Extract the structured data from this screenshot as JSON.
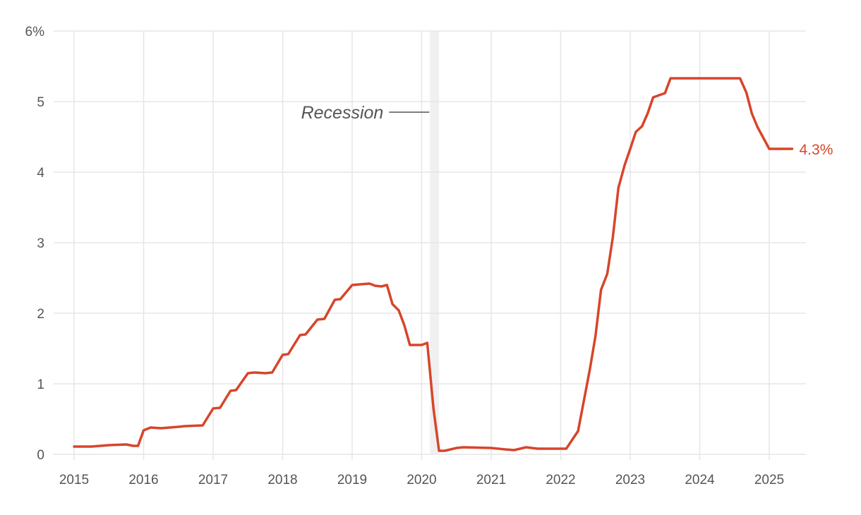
{
  "chart_data": {
    "type": "line",
    "title": "",
    "xlabel": "",
    "ylabel": "",
    "xlim": [
      2015,
      2025.6
    ],
    "ylim": [
      0,
      6
    ],
    "y_ticks": [
      0,
      1,
      2,
      3,
      4,
      5,
      6
    ],
    "y_tick_labels": [
      "0",
      "1",
      "2",
      "3",
      "4",
      "5",
      "6%"
    ],
    "x_ticks": [
      2015,
      2016,
      2017,
      2018,
      2019,
      2020,
      2021,
      2022,
      2023,
      2024,
      2025
    ],
    "x_tick_labels": [
      "2015",
      "2016",
      "2017",
      "2018",
      "2019",
      "2020",
      "2021",
      "2022",
      "2023",
      "2024",
      "2025"
    ],
    "grid": true,
    "series": [
      {
        "color": "#d7452a",
        "end_label": "4.3%",
        "points": [
          [
            2015.0,
            0.11
          ],
          [
            2015.25,
            0.11
          ],
          [
            2015.5,
            0.13
          ],
          [
            2015.75,
            0.14
          ],
          [
            2015.85,
            0.12
          ],
          [
            2015.92,
            0.12
          ],
          [
            2016.0,
            0.34
          ],
          [
            2016.1,
            0.38
          ],
          [
            2016.25,
            0.37
          ],
          [
            2016.5,
            0.39
          ],
          [
            2016.6,
            0.4
          ],
          [
            2016.85,
            0.41
          ],
          [
            2017.0,
            0.65
          ],
          [
            2017.1,
            0.66
          ],
          [
            2017.25,
            0.9
          ],
          [
            2017.33,
            0.91
          ],
          [
            2017.5,
            1.15
          ],
          [
            2017.6,
            1.16
          ],
          [
            2017.75,
            1.15
          ],
          [
            2017.85,
            1.16
          ],
          [
            2018.0,
            1.41
          ],
          [
            2018.08,
            1.42
          ],
          [
            2018.25,
            1.69
          ],
          [
            2018.33,
            1.7
          ],
          [
            2018.5,
            1.91
          ],
          [
            2018.6,
            1.92
          ],
          [
            2018.75,
            2.19
          ],
          [
            2018.83,
            2.2
          ],
          [
            2019.0,
            2.4
          ],
          [
            2019.25,
            2.42
          ],
          [
            2019.33,
            2.39
          ],
          [
            2019.42,
            2.38
          ],
          [
            2019.5,
            2.4
          ],
          [
            2019.58,
            2.13
          ],
          [
            2019.67,
            2.04
          ],
          [
            2019.75,
            1.83
          ],
          [
            2019.83,
            1.55
          ],
          [
            2020.0,
            1.55
          ],
          [
            2020.08,
            1.58
          ],
          [
            2020.17,
            0.65
          ],
          [
            2020.25,
            0.05
          ],
          [
            2020.33,
            0.05
          ],
          [
            2020.5,
            0.09
          ],
          [
            2020.6,
            0.1
          ],
          [
            2021.0,
            0.09
          ],
          [
            2021.2,
            0.07
          ],
          [
            2021.33,
            0.06
          ],
          [
            2021.5,
            0.1
          ],
          [
            2021.67,
            0.08
          ],
          [
            2022.08,
            0.08
          ],
          [
            2022.25,
            0.33
          ],
          [
            2022.42,
            1.21
          ],
          [
            2022.5,
            1.68
          ],
          [
            2022.58,
            2.33
          ],
          [
            2022.67,
            2.56
          ],
          [
            2022.75,
            3.08
          ],
          [
            2022.83,
            3.78
          ],
          [
            2022.92,
            4.1
          ],
          [
            2023.0,
            4.33
          ],
          [
            2023.08,
            4.57
          ],
          [
            2023.17,
            4.65
          ],
          [
            2023.25,
            4.83
          ],
          [
            2023.33,
            5.06
          ],
          [
            2023.5,
            5.12
          ],
          [
            2023.58,
            5.33
          ],
          [
            2024.58,
            5.33
          ],
          [
            2024.67,
            5.13
          ],
          [
            2024.75,
            4.83
          ],
          [
            2024.83,
            4.64
          ],
          [
            2025.0,
            4.33
          ],
          [
            2025.33,
            4.33
          ]
        ]
      }
    ],
    "annotations": [
      {
        "text": "Recession",
        "x_start": 2020.12,
        "x_end": 2020.25
      }
    ]
  }
}
